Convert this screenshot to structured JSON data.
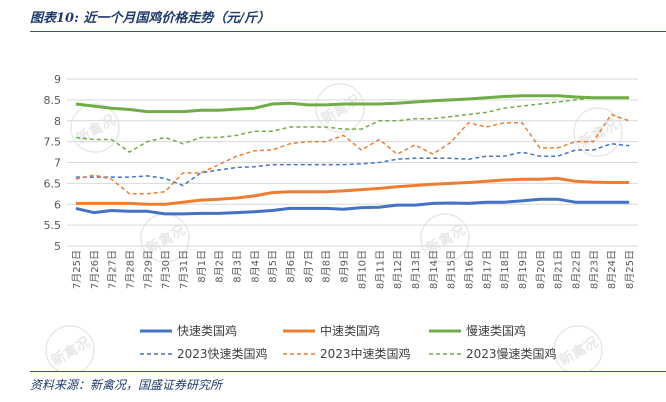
{
  "header": {
    "title": "图表10:  近一个月国鸡价格走势（元/斤）"
  },
  "footer": {
    "source": "资料来源：新禽况，国盛证券研究所"
  },
  "watermark": {
    "text": "新禽况"
  },
  "colors": {
    "blue": "#4472c4",
    "orange": "#ed7d31",
    "green": "#70ad47",
    "axis_text": "#595959",
    "gridline": "#d9d9d9",
    "title": "#1f3b6b"
  },
  "chart_data": {
    "type": "line",
    "title": "",
    "xlabel": "",
    "ylabel": "",
    "ylim": [
      5,
      9
    ],
    "yticks": [
      "5",
      "5.5",
      "6",
      "6.5",
      "7",
      "7.5",
      "8",
      "8.5",
      "9"
    ],
    "grid": "horizontal",
    "legend_position": "bottom",
    "categories": [
      "7月25日",
      "7月26日",
      "7月27日",
      "7月28日",
      "7月29日",
      "7月30日",
      "7月31日",
      "8月1日",
      "8月2日",
      "8月3日",
      "8月4日",
      "8月5日",
      "8月6日",
      "8月7日",
      "8月8日",
      "8月9日",
      "8月10日",
      "8月11日",
      "8月12日",
      "8月13日",
      "8月14日",
      "8月15日",
      "8月16日",
      "8月17日",
      "8月18日",
      "8月19日",
      "8月20日",
      "8月21日",
      "8月22日",
      "8月23日",
      "8月24日",
      "8月25日"
    ],
    "series": [
      {
        "name": "快速类国鸡",
        "color": "#4472c4",
        "style": "solid",
        "width": 3,
        "values": [
          5.9,
          5.8,
          5.85,
          5.83,
          5.83,
          5.77,
          5.77,
          5.78,
          5.78,
          5.8,
          5.82,
          5.85,
          5.9,
          5.9,
          5.9,
          5.88,
          5.92,
          5.93,
          5.98,
          5.98,
          6.02,
          6.03,
          6.02,
          6.05,
          6.05,
          6.08,
          6.12,
          6.12,
          6.05,
          6.05,
          6.05,
          6.05
        ]
      },
      {
        "name": "中速类国鸡",
        "color": "#ed7d31",
        "style": "solid",
        "width": 3,
        "values": [
          6.02,
          6.02,
          6.02,
          6.02,
          6.0,
          6.0,
          6.05,
          6.1,
          6.12,
          6.15,
          6.2,
          6.28,
          6.3,
          6.3,
          6.3,
          6.32,
          6.35,
          6.38,
          6.42,
          6.45,
          6.48,
          6.5,
          6.52,
          6.55,
          6.58,
          6.6,
          6.6,
          6.62,
          6.55,
          6.53,
          6.52,
          6.52
        ]
      },
      {
        "name": "慢速类国鸡",
        "color": "#70ad47",
        "style": "solid",
        "width": 3,
        "values": [
          8.4,
          8.35,
          8.3,
          8.27,
          8.22,
          8.22,
          8.22,
          8.25,
          8.25,
          8.28,
          8.3,
          8.4,
          8.42,
          8.38,
          8.38,
          8.4,
          8.4,
          8.4,
          8.42,
          8.45,
          8.48,
          8.5,
          8.52,
          8.55,
          8.58,
          8.6,
          8.6,
          8.6,
          8.57,
          8.55,
          8.55,
          8.55
        ]
      },
      {
        "name": "2023快速类国鸡",
        "color": "#4472c4",
        "style": "dashed",
        "width": 1.5,
        "values": [
          6.65,
          6.65,
          6.65,
          6.65,
          6.68,
          6.62,
          6.45,
          6.75,
          6.82,
          6.88,
          6.9,
          6.95,
          6.95,
          6.95,
          6.95,
          6.95,
          6.97,
          7.0,
          7.08,
          7.1,
          7.1,
          7.1,
          7.08,
          7.15,
          7.15,
          7.25,
          7.15,
          7.15,
          7.3,
          7.3,
          7.45,
          7.4
        ]
      },
      {
        "name": "2023中速类国鸡",
        "color": "#ed7d31",
        "style": "dashed",
        "width": 1.5,
        "values": [
          6.6,
          6.7,
          6.6,
          6.25,
          6.25,
          6.3,
          6.75,
          6.75,
          6.95,
          7.15,
          7.28,
          7.3,
          7.45,
          7.5,
          7.5,
          7.65,
          7.3,
          7.55,
          7.2,
          7.42,
          7.2,
          7.48,
          7.95,
          7.85,
          7.95,
          7.95,
          7.35,
          7.35,
          7.5,
          7.5,
          8.15,
          8.0
        ]
      },
      {
        "name": "2023慢速类国鸡",
        "color": "#70ad47",
        "style": "dashed",
        "width": 1.5,
        "values": [
          7.6,
          7.55,
          7.55,
          7.25,
          7.5,
          7.6,
          7.45,
          7.6,
          7.6,
          7.65,
          7.75,
          7.75,
          7.85,
          7.85,
          7.85,
          7.8,
          7.8,
          8.0,
          8.0,
          8.05,
          8.05,
          8.1,
          8.15,
          8.2,
          8.3,
          8.35,
          8.4,
          8.45,
          8.5,
          8.55,
          8.55,
          8.55
        ]
      }
    ]
  }
}
